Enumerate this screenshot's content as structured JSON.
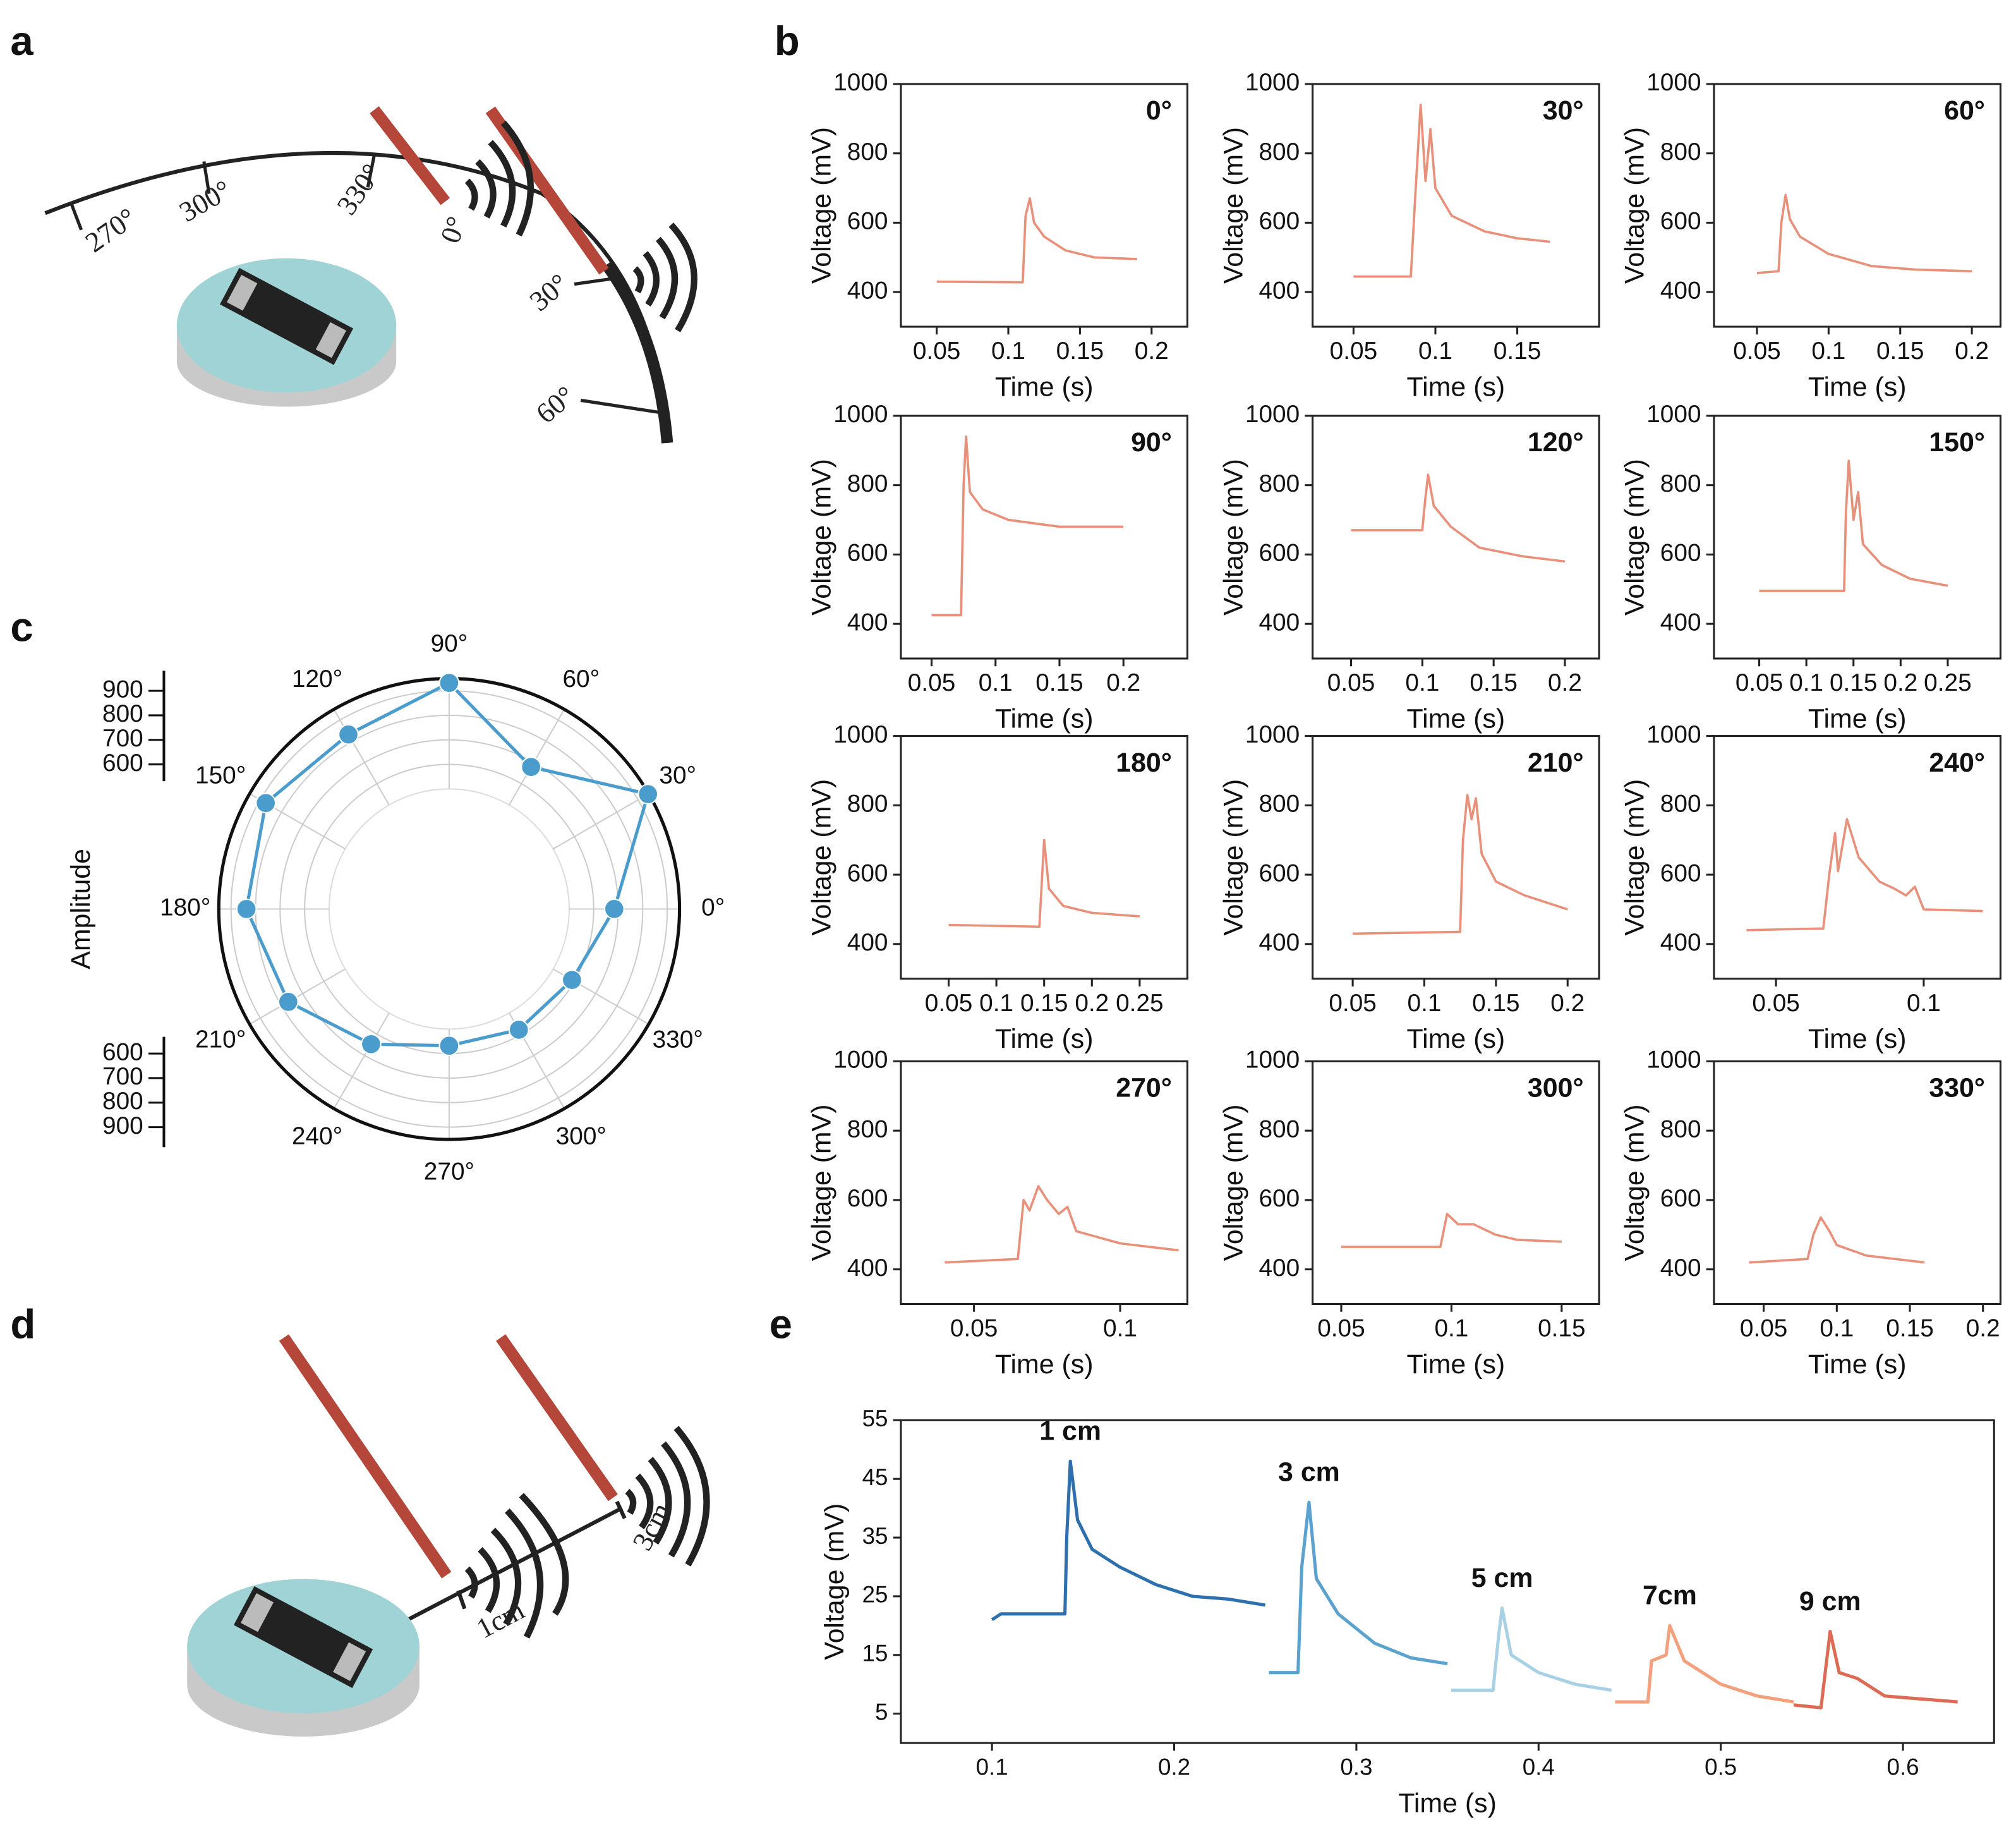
{
  "panels": [
    "a",
    "b",
    "c",
    "d",
    "e"
  ],
  "diagram_a": {
    "labels": [
      "270°",
      "300°",
      "330°",
      "0°",
      "30°",
      "60°"
    ]
  },
  "diagram_d": {
    "labels": [
      "1cm",
      "3cm"
    ]
  },
  "chart_data": [
    {
      "type": "line",
      "annotation": "0°",
      "color": "#e8907a",
      "xlabel": "Time (s)",
      "ylabel": "Voltage (mV)",
      "x": [
        0.05,
        0.11,
        0.112,
        0.115,
        0.118,
        0.125,
        0.14,
        0.16,
        0.19
      ],
      "values": [
        430,
        428,
        620,
        670,
        600,
        560,
        520,
        500,
        495
      ],
      "xlim": [
        0.025,
        0.225
      ],
      "ylim": [
        300,
        1000
      ],
      "xticks": [
        0.05,
        0.1,
        0.15,
        0.2
      ],
      "yticks": [
        400,
        600,
        800,
        1000
      ]
    },
    {
      "type": "line",
      "annotation": "30°",
      "color": "#e8907a",
      "xlabel": "Time (s)",
      "ylabel": "Voltage (mV)",
      "x": [
        0.05,
        0.085,
        0.088,
        0.091,
        0.094,
        0.097,
        0.1,
        0.11,
        0.13,
        0.15,
        0.17
      ],
      "values": [
        445,
        445,
        700,
        940,
        720,
        870,
        700,
        620,
        575,
        555,
        545
      ],
      "xlim": [
        0.025,
        0.2
      ],
      "ylim": [
        300,
        1000
      ],
      "xticks": [
        0.05,
        0.1,
        0.15
      ],
      "yticks": [
        400,
        600,
        800,
        1000
      ]
    },
    {
      "type": "line",
      "annotation": "60°",
      "color": "#e8907a",
      "xlabel": "Time (s)",
      "ylabel": "Voltage (mV)",
      "x": [
        0.05,
        0.065,
        0.067,
        0.07,
        0.073,
        0.08,
        0.1,
        0.13,
        0.16,
        0.2
      ],
      "values": [
        455,
        460,
        600,
        680,
        610,
        560,
        510,
        475,
        465,
        460
      ],
      "xlim": [
        0.02,
        0.22
      ],
      "ylim": [
        300,
        1000
      ],
      "xticks": [
        0.05,
        0.1,
        0.15,
        0.2
      ],
      "yticks": [
        400,
        600,
        800,
        1000
      ]
    },
    {
      "type": "line",
      "annotation": "90°",
      "color": "#e8907a",
      "xlabel": "Time (s)",
      "ylabel": "Voltage (mV)",
      "x": [
        0.05,
        0.073,
        0.075,
        0.077,
        0.08,
        0.09,
        0.11,
        0.15,
        0.2
      ],
      "values": [
        425,
        425,
        800,
        940,
        780,
        730,
        700,
        680,
        680
      ],
      "xlim": [
        0.026,
        0.25
      ],
      "ylim": [
        300,
        1000
      ],
      "xticks": [
        0.05,
        0.1,
        0.15,
        0.2
      ],
      "yticks": [
        400,
        600,
        800,
        1000
      ]
    },
    {
      "type": "line",
      "annotation": "120°",
      "color": "#e8907a",
      "xlabel": "Time (s)",
      "ylabel": "Voltage (mV)",
      "x": [
        0.05,
        0.1,
        0.102,
        0.104,
        0.108,
        0.12,
        0.14,
        0.17,
        0.2
      ],
      "values": [
        670,
        670,
        760,
        830,
        740,
        680,
        620,
        595,
        580
      ],
      "xlim": [
        0.023,
        0.224
      ],
      "ylim": [
        300,
        1000
      ],
      "xticks": [
        0.05,
        0.1,
        0.15,
        0.2
      ],
      "yticks": [
        400,
        600,
        800,
        1000
      ]
    },
    {
      "type": "line",
      "annotation": "150°",
      "color": "#e8907a",
      "xlabel": "Time (s)",
      "ylabel": "Voltage (mV)",
      "x": [
        0.05,
        0.14,
        0.142,
        0.145,
        0.15,
        0.155,
        0.16,
        0.18,
        0.21,
        0.25
      ],
      "values": [
        495,
        495,
        720,
        870,
        700,
        780,
        630,
        570,
        530,
        510
      ],
      "xlim": [
        0.002,
        0.306
      ],
      "ylim": [
        300,
        1000
      ],
      "xticks": [
        0.05,
        0.1,
        0.15,
        0.2,
        0.25
      ],
      "yticks": [
        400,
        600,
        800,
        1000
      ]
    },
    {
      "type": "line",
      "annotation": "180°",
      "color": "#e8907a",
      "xlabel": "Time (s)",
      "ylabel": "Voltage (mV)",
      "x": [
        0.05,
        0.145,
        0.148,
        0.15,
        0.155,
        0.17,
        0.2,
        0.25
      ],
      "values": [
        455,
        450,
        600,
        700,
        560,
        510,
        490,
        480
      ],
      "xlim": [
        0.0,
        0.3
      ],
      "ylim": [
        300,
        1000
      ],
      "xticks": [
        0.05,
        0.1,
        0.15,
        0.2,
        0.25
      ],
      "yticks": [
        400,
        600,
        800,
        1000
      ]
    },
    {
      "type": "line",
      "annotation": "210°",
      "color": "#e8907a",
      "xlabel": "Time (s)",
      "ylabel": "Voltage (mV)",
      "x": [
        0.05,
        0.125,
        0.127,
        0.13,
        0.133,
        0.136,
        0.14,
        0.15,
        0.17,
        0.2
      ],
      "values": [
        430,
        435,
        700,
        830,
        760,
        820,
        660,
        580,
        540,
        500
      ],
      "xlim": [
        0.022,
        0.222
      ],
      "ylim": [
        300,
        1000
      ],
      "xticks": [
        0.05,
        0.1,
        0.15,
        0.2
      ],
      "yticks": [
        400,
        600,
        800,
        1000
      ]
    },
    {
      "type": "line",
      "annotation": "240°",
      "color": "#e8907a",
      "xlabel": "Time (s)",
      "ylabel": "Voltage (mV)",
      "x": [
        0.04,
        0.066,
        0.068,
        0.07,
        0.071,
        0.074,
        0.078,
        0.085,
        0.09,
        0.094,
        0.097,
        0.1,
        0.12
      ],
      "values": [
        440,
        445,
        600,
        720,
        610,
        760,
        650,
        580,
        560,
        540,
        565,
        500,
        495
      ],
      "xlim": [
        0.029,
        0.126
      ],
      "ylim": [
        300,
        1000
      ],
      "xticks": [
        0.05,
        0.1
      ],
      "yticks": [
        400,
        600,
        800,
        1000
      ]
    },
    {
      "type": "line",
      "annotation": "270°",
      "color": "#e8907a",
      "xlabel": "Time (s)",
      "ylabel": "Voltage (mV)",
      "x": [
        0.04,
        0.065,
        0.067,
        0.069,
        0.072,
        0.075,
        0.079,
        0.082,
        0.085,
        0.1,
        0.12
      ],
      "values": [
        420,
        430,
        600,
        570,
        640,
        600,
        560,
        580,
        510,
        475,
        455
      ],
      "xlim": [
        0.025,
        0.123
      ],
      "ylim": [
        300,
        1000
      ],
      "xticks": [
        0.05,
        0.1
      ],
      "yticks": [
        400,
        600,
        800,
        1000
      ]
    },
    {
      "type": "line",
      "annotation": "300°",
      "color": "#e8907a",
      "xlabel": "Time (s)",
      "ylabel": "Voltage (mV)",
      "x": [
        0.05,
        0.095,
        0.098,
        0.103,
        0.11,
        0.12,
        0.13,
        0.15
      ],
      "values": [
        465,
        465,
        560,
        530,
        530,
        500,
        485,
        480
      ],
      "xlim": [
        0.037,
        0.167
      ],
      "ylim": [
        300,
        1000
      ],
      "xticks": [
        0.05,
        0.1,
        0.15
      ],
      "yticks": [
        400,
        600,
        800,
        1000
      ]
    },
    {
      "type": "line",
      "annotation": "330°",
      "color": "#e8907a",
      "xlabel": "Time (s)",
      "ylabel": "Voltage (mV)",
      "x": [
        0.04,
        0.08,
        0.084,
        0.089,
        0.095,
        0.1,
        0.12,
        0.14,
        0.16
      ],
      "values": [
        420,
        430,
        500,
        550,
        510,
        470,
        440,
        430,
        420
      ],
      "xlim": [
        0.016,
        0.212
      ],
      "ylim": [
        300,
        1000
      ],
      "xticks": [
        0.05,
        0.1,
        0.15,
        0.2
      ],
      "yticks": [
        400,
        600,
        800,
        1000
      ]
    },
    {
      "type": "polar",
      "color": "#4a9ccc",
      "rlabel": "Amplitude",
      "categories": [
        "0°",
        "30°",
        "60°",
        "90°",
        "120°",
        "150°",
        "180°",
        "210°",
        "240°",
        "270°",
        "300°",
        "330°"
      ],
      "values": [
        684,
        947,
        679,
        932,
        832,
        874,
        837,
        768,
        647,
        568,
        579,
        589
      ],
      "rlim": [
        500,
        950
      ],
      "rticks": [
        600,
        700,
        800,
        900
      ]
    },
    {
      "type": "line",
      "xlabel": "Time (s)",
      "ylabel": "Voltage (mV)",
      "xlim": [
        0.05,
        0.65
      ],
      "ylim": [
        0,
        55
      ],
      "xticks": [
        0.1,
        0.2,
        0.3,
        0.4,
        0.5,
        0.6
      ],
      "yticks": [
        5,
        15,
        25,
        35,
        45,
        55
      ],
      "series": [
        {
          "name": "1 cm",
          "color": "#2e6fad",
          "x": [
            0.1,
            0.105,
            0.14,
            0.141,
            0.143,
            0.147,
            0.155,
            0.17,
            0.19,
            0.21,
            0.23,
            0.25
          ],
          "values": [
            21,
            22,
            22,
            35,
            48,
            38,
            33,
            30,
            27,
            25,
            24.5,
            23.5
          ]
        },
        {
          "name": "3 cm",
          "color": "#5ba2cf",
          "x": [
            0.252,
            0.268,
            0.27,
            0.274,
            0.278,
            0.29,
            0.31,
            0.33,
            0.35
          ],
          "values": [
            12,
            12,
            30,
            41,
            28,
            22,
            17,
            14.5,
            13.5
          ]
        },
        {
          "name": "5 cm",
          "color": "#a8d1e6",
          "x": [
            0.352,
            0.375,
            0.378,
            0.38,
            0.385,
            0.4,
            0.42,
            0.44
          ],
          "values": [
            9,
            9,
            18,
            23,
            15,
            12,
            10,
            9
          ]
        },
        {
          "name": "7cm",
          "color": "#f4a07c",
          "x": [
            0.442,
            0.46,
            0.462,
            0.47,
            0.472,
            0.48,
            0.5,
            0.52,
            0.54
          ],
          "values": [
            7,
            7,
            14,
            15,
            20,
            14,
            10,
            8,
            7
          ]
        },
        {
          "name": "9 cm",
          "color": "#dd6a55",
          "x": [
            0.54,
            0.555,
            0.56,
            0.565,
            0.575,
            0.59,
            0.61,
            0.63
          ],
          "values": [
            6.5,
            6,
            19,
            12,
            11,
            8,
            7.5,
            7
          ]
        }
      ]
    }
  ]
}
